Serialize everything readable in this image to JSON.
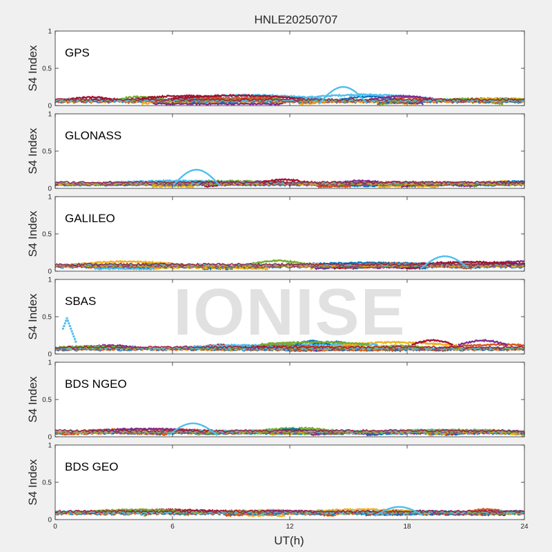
{
  "figure": {
    "title": "HNLE20250707",
    "xlabel": "UT(h)",
    "watermark": "IONISE"
  },
  "chart_data": [
    {
      "type": "scatter",
      "panel": "GPS",
      "ylabel": "S4 Index",
      "xlim": [
        0,
        24
      ],
      "ylim": [
        0,
        1
      ],
      "xticks": [
        0,
        6,
        12,
        18,
        24
      ],
      "yticks": [
        0,
        0.5,
        1
      ],
      "typical_s4": [
        0.02,
        0.15
      ],
      "max_s4": 0.25
    },
    {
      "type": "scatter",
      "panel": "GLONASS",
      "ylabel": "S4 Index",
      "xlim": [
        0,
        24
      ],
      "ylim": [
        0,
        1
      ],
      "xticks": [
        0,
        6,
        12,
        18,
        24
      ],
      "yticks": [
        0,
        0.5,
        1
      ],
      "typical_s4": [
        0.02,
        0.12
      ],
      "max_s4": 0.25
    },
    {
      "type": "scatter",
      "panel": "GALILEO",
      "ylabel": "S4 Index",
      "xlim": [
        0,
        24
      ],
      "ylim": [
        0,
        1
      ],
      "xticks": [
        0,
        6,
        12,
        18,
        24
      ],
      "yticks": [
        0,
        0.5,
        1
      ],
      "typical_s4": [
        0.03,
        0.15
      ],
      "max_s4": 0.2
    },
    {
      "type": "scatter",
      "panel": "SBAS",
      "ylabel": "S4 Index",
      "xlim": [
        0,
        24
      ],
      "ylim": [
        0,
        1
      ],
      "xticks": [
        0,
        6,
        12,
        18,
        24
      ],
      "yticks": [
        0,
        0.5,
        1
      ],
      "typical_s4": [
        0.03,
        0.2
      ],
      "max_s4": 0.48
    },
    {
      "type": "scatter",
      "panel": "BDS NGEO",
      "ylabel": "S4 Index",
      "xlim": [
        0,
        24
      ],
      "ylim": [
        0,
        1
      ],
      "xticks": [
        0,
        6,
        12,
        18,
        24
      ],
      "yticks": [
        0,
        0.5,
        1
      ],
      "typical_s4": [
        0.02,
        0.12
      ],
      "max_s4": 0.18
    },
    {
      "type": "scatter",
      "panel": "BDS GEO",
      "ylabel": "S4 Index",
      "xlim": [
        0,
        24
      ],
      "ylim": [
        0,
        1
      ],
      "xticks": [
        0,
        6,
        12,
        18,
        24
      ],
      "yticks": [
        0,
        0.5,
        1
      ],
      "typical_s4": [
        0.05,
        0.15
      ],
      "max_s4": 0.17
    }
  ],
  "colors": {
    "series": [
      "#0072BD",
      "#D95319",
      "#EDB120",
      "#7E2F8E",
      "#77AC30",
      "#4DBEEE",
      "#A2142F"
    ],
    "axis": "#262626",
    "panel_bg": "#ffffff",
    "figure_bg": "#f0f0f0"
  }
}
